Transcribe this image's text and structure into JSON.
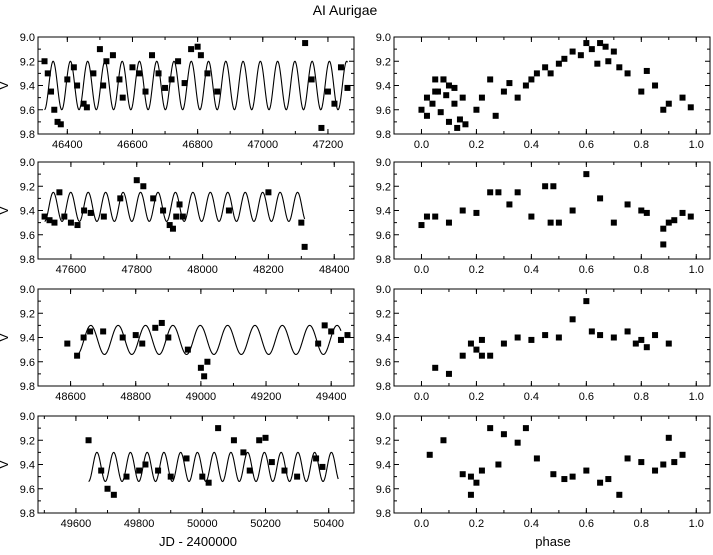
{
  "figure": {
    "title": "AI Aurigae",
    "xlabel_left": "JD - 2400000",
    "xlabel_right": "phase"
  },
  "chart_data": [
    {
      "type": "scatter",
      "panel": "row1-left",
      "xlim": [
        46310,
        47280
      ],
      "ylim": [
        9.0,
        9.8
      ],
      "y_inverted": true,
      "xticks": [
        46400,
        46600,
        46800,
        47000,
        47200
      ],
      "yticks": [
        9.0,
        9.2,
        9.4,
        9.6,
        9.8
      ],
      "ylabel": "V",
      "series": [
        {
          "kind": "points",
          "x": [
            46330,
            46340,
            46350,
            46360,
            46370,
            46380,
            46400,
            46420,
            46430,
            46450,
            46460,
            46480,
            46500,
            46510,
            46520,
            46540,
            46560,
            46570,
            46600,
            46620,
            46640,
            46660,
            46680,
            46700,
            46720,
            46740,
            46760,
            46780,
            46800,
            46810,
            46830,
            46860,
            47130,
            47150,
            47180,
            47200,
            47220,
            47240,
            47260
          ],
          "y": [
            9.2,
            9.3,
            9.45,
            9.6,
            9.7,
            9.72,
            9.35,
            9.25,
            9.4,
            9.55,
            9.58,
            9.3,
            9.1,
            9.4,
            9.2,
            9.15,
            9.35,
            9.5,
            9.25,
            9.3,
            9.45,
            9.15,
            9.3,
            9.42,
            9.35,
            9.2,
            9.38,
            9.1,
            9.08,
            9.15,
            9.3,
            9.45,
            9.05,
            9.35,
            9.75,
            9.45,
            9.55,
            9.25,
            9.42
          ]
        },
        {
          "kind": "fit",
          "mean": 9.4,
          "amplitude": 0.2,
          "period": 53.0,
          "x_start": 46330,
          "x_end": 47260
        }
      ]
    },
    {
      "type": "scatter",
      "panel": "row1-right",
      "xlim": [
        -0.1,
        1.05
      ],
      "ylim": [
        9.0,
        9.8
      ],
      "y_inverted": true,
      "xticks": [
        0.0,
        0.2,
        0.4,
        0.6,
        0.8,
        1.0
      ],
      "yticks": [
        9.0,
        9.2,
        9.4,
        9.6,
        9.8
      ],
      "series": [
        {
          "kind": "points",
          "x": [
            0.0,
            0.02,
            0.04,
            0.05,
            0.06,
            0.07,
            0.08,
            0.09,
            0.1,
            0.1,
            0.12,
            0.13,
            0.14,
            0.15,
            0.16,
            0.2,
            0.22,
            0.25,
            0.27,
            0.3,
            0.32,
            0.35,
            0.38,
            0.4,
            0.42,
            0.45,
            0.47,
            0.5,
            0.52,
            0.55,
            0.58,
            0.6,
            0.62,
            0.64,
            0.65,
            0.67,
            0.68,
            0.7,
            0.72,
            0.75,
            0.8,
            0.82,
            0.85,
            0.88,
            0.9,
            0.95,
            0.98,
            0.02,
            0.05,
            0.08,
            0.12
          ],
          "y": [
            9.6,
            9.5,
            9.55,
            9.35,
            9.45,
            9.62,
            9.35,
            9.48,
            9.7,
            9.4,
            9.55,
            9.75,
            9.68,
            9.5,
            9.72,
            9.6,
            9.5,
            9.35,
            9.65,
            9.45,
            9.38,
            9.5,
            9.4,
            9.35,
            9.3,
            9.25,
            9.3,
            9.22,
            9.18,
            9.12,
            9.15,
            9.05,
            9.1,
            9.22,
            9.05,
            9.08,
            9.2,
            9.12,
            9.25,
            9.3,
            9.45,
            9.28,
            9.4,
            9.6,
            9.55,
            9.5,
            9.58,
            9.65,
            9.45,
            9.35,
            9.42
          ]
        }
      ]
    },
    {
      "type": "scatter",
      "panel": "row2-left",
      "xlim": [
        47500,
        48460
      ],
      "ylim": [
        9.0,
        9.8
      ],
      "y_inverted": true,
      "xticks": [
        47600,
        47800,
        48000,
        48200,
        48400
      ],
      "yticks": [
        9.0,
        9.2,
        9.4,
        9.6,
        9.8
      ],
      "ylabel": "V",
      "series": [
        {
          "kind": "points",
          "x": [
            47520,
            47535,
            47550,
            47565,
            47580,
            47600,
            47620,
            47640,
            47660,
            47700,
            47750,
            47800,
            47820,
            47850,
            47880,
            47900,
            47910,
            47920,
            47930,
            47940,
            48080,
            48200,
            48300,
            48310
          ],
          "y": [
            9.45,
            9.48,
            9.5,
            9.25,
            9.45,
            9.5,
            9.52,
            9.4,
            9.42,
            9.45,
            9.3,
            9.15,
            9.2,
            9.3,
            9.4,
            9.52,
            9.55,
            9.45,
            9.35,
            9.45,
            9.4,
            9.25,
            9.5,
            9.7
          ]
        },
        {
          "kind": "fit",
          "mean": 9.37,
          "amplitude": 0.12,
          "period": 53.0,
          "x_start": 47520,
          "x_end": 48310
        }
      ]
    },
    {
      "type": "scatter",
      "panel": "row2-right",
      "xlim": [
        -0.1,
        1.05
      ],
      "ylim": [
        9.0,
        9.8
      ],
      "y_inverted": true,
      "xticks": [
        0.0,
        0.2,
        0.4,
        0.6,
        0.8,
        1.0
      ],
      "yticks": [
        9.0,
        9.2,
        9.4,
        9.6,
        9.8
      ],
      "series": [
        {
          "kind": "points",
          "x": [
            0.0,
            0.02,
            0.05,
            0.1,
            0.15,
            0.2,
            0.25,
            0.28,
            0.32,
            0.35,
            0.4,
            0.45,
            0.47,
            0.48,
            0.5,
            0.55,
            0.6,
            0.65,
            0.7,
            0.75,
            0.8,
            0.82,
            0.88,
            0.9,
            0.92,
            0.95,
            0.98,
            0.88
          ],
          "y": [
            9.52,
            9.45,
            9.45,
            9.5,
            9.4,
            9.42,
            9.25,
            9.25,
            9.35,
            9.25,
            9.45,
            9.2,
            9.5,
            9.2,
            9.5,
            9.4,
            9.1,
            9.3,
            9.5,
            9.35,
            9.4,
            9.42,
            9.55,
            9.5,
            9.48,
            9.42,
            9.45,
            9.68
          ]
        }
      ]
    },
    {
      "type": "scatter",
      "panel": "row3-left",
      "xlim": [
        48500,
        49470
      ],
      "ylim": [
        9.0,
        9.8
      ],
      "y_inverted": true,
      "xticks": [
        48600,
        48800,
        49000,
        49200,
        49400
      ],
      "yticks": [
        9.0,
        9.2,
        9.4,
        9.6,
        9.8
      ],
      "ylabel": "V",
      "series": [
        {
          "kind": "points",
          "x": [
            48590,
            48620,
            48640,
            48660,
            48700,
            48760,
            48800,
            48820,
            48860,
            48880,
            48900,
            48960,
            49000,
            49010,
            49020,
            49380,
            49400,
            49430,
            49450,
            49360
          ],
          "y": [
            9.45,
            9.55,
            9.4,
            9.35,
            9.35,
            9.4,
            9.38,
            9.45,
            9.32,
            9.28,
            9.4,
            9.5,
            9.65,
            9.72,
            9.6,
            9.3,
            9.35,
            9.42,
            9.38,
            9.45
          ]
        },
        {
          "kind": "fit",
          "mean": 9.42,
          "amplitude": 0.12,
          "period": 84.0,
          "x_start": 48620,
          "x_end": 49430
        }
      ]
    },
    {
      "type": "scatter",
      "panel": "row3-right",
      "xlim": [
        -0.1,
        1.05
      ],
      "ylim": [
        9.0,
        9.8
      ],
      "y_inverted": true,
      "xticks": [
        0.0,
        0.2,
        0.4,
        0.6,
        0.8,
        1.0
      ],
      "yticks": [
        9.0,
        9.2,
        9.4,
        9.6,
        9.8
      ],
      "series": [
        {
          "kind": "points",
          "x": [
            0.05,
            0.1,
            0.15,
            0.18,
            0.2,
            0.22,
            0.25,
            0.3,
            0.35,
            0.4,
            0.45,
            0.5,
            0.55,
            0.6,
            0.62,
            0.65,
            0.7,
            0.75,
            0.78,
            0.8,
            0.82,
            0.85,
            0.9,
            0.22
          ],
          "y": [
            9.65,
            9.7,
            9.55,
            9.45,
            9.5,
            9.42,
            9.55,
            9.45,
            9.4,
            9.42,
            9.38,
            9.4,
            9.25,
            9.1,
            9.35,
            9.38,
            9.4,
            9.35,
            9.45,
            9.42,
            9.48,
            9.38,
            9.45,
            9.55
          ]
        }
      ]
    },
    {
      "type": "scatter",
      "panel": "row4-left",
      "xlim": [
        49480,
        50480
      ],
      "ylim": [
        9.0,
        9.8
      ],
      "y_inverted": true,
      "xticks": [
        49600,
        49800,
        50000,
        50200,
        50400
      ],
      "yticks": [
        9.0,
        9.2,
        9.4,
        9.6,
        9.8
      ],
      "ylabel": "V",
      "series": [
        {
          "kind": "points",
          "x": [
            49640,
            49680,
            49700,
            49720,
            49760,
            49800,
            49820,
            49860,
            49900,
            49950,
            50000,
            50020,
            50050,
            50100,
            50130,
            50150,
            50180,
            50200,
            50220,
            50260,
            50300,
            50360,
            50380
          ],
          "y": [
            9.2,
            9.45,
            9.6,
            9.65,
            9.5,
            9.45,
            9.4,
            9.45,
            9.5,
            9.35,
            9.5,
            9.55,
            9.1,
            9.2,
            9.3,
            9.45,
            9.2,
            9.18,
            9.38,
            9.45,
            9.5,
            9.35,
            9.42
          ]
        },
        {
          "kind": "fit",
          "mean": 9.42,
          "amplitude": 0.12,
          "period": 53.0,
          "x_start": 49640,
          "x_end": 50430
        }
      ]
    },
    {
      "type": "scatter",
      "panel": "row4-right",
      "xlim": [
        -0.1,
        1.05
      ],
      "ylim": [
        9.0,
        9.8
      ],
      "y_inverted": true,
      "xticks": [
        0.0,
        0.2,
        0.4,
        0.6,
        0.8,
        1.0
      ],
      "yticks": [
        9.0,
        9.2,
        9.4,
        9.6,
        9.8
      ],
      "series": [
        {
          "kind": "points",
          "x": [
            0.03,
            0.08,
            0.15,
            0.18,
            0.2,
            0.22,
            0.25,
            0.28,
            0.3,
            0.35,
            0.38,
            0.42,
            0.48,
            0.52,
            0.55,
            0.6,
            0.65,
            0.68,
            0.72,
            0.75,
            0.8,
            0.85,
            0.88,
            0.9,
            0.92,
            0.95,
            0.18
          ],
          "y": [
            9.32,
            9.2,
            9.48,
            9.5,
            9.55,
            9.45,
            9.1,
            9.4,
            9.15,
            9.22,
            9.1,
            9.35,
            9.48,
            9.52,
            9.5,
            9.45,
            9.55,
            9.52,
            9.65,
            9.35,
            9.38,
            9.45,
            9.4,
            9.18,
            9.38,
            9.32,
            9.65
          ]
        }
      ]
    }
  ]
}
